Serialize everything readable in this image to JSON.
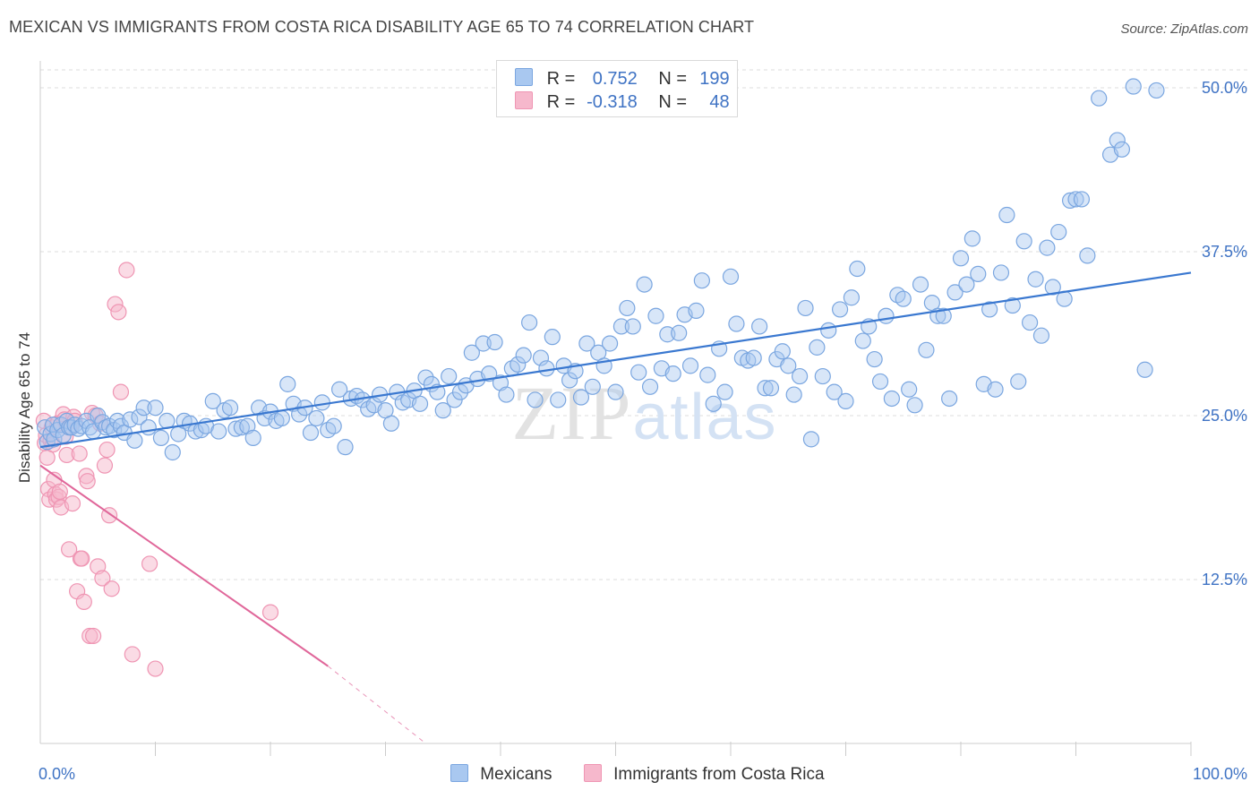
{
  "title": "MEXICAN VS IMMIGRANTS FROM COSTA RICA DISABILITY AGE 65 TO 74 CORRELATION CHART",
  "source": "Source: ZipAtlas.com",
  "watermark": "ZIPatlas",
  "legend": {
    "rows": [
      {
        "r_label": "R =",
        "r_value": "0.752",
        "n_label": "N =",
        "n_value": "199"
      },
      {
        "r_label": "R =",
        "r_value": "-0.318",
        "n_label": "N =",
        "n_value": "48"
      }
    ],
    "bottom": [
      "Mexicans",
      "Immigrants from Costa Rica"
    ]
  },
  "colors": {
    "blue_fill": "#a9c8f0",
    "blue_stroke": "#7aa6e0",
    "blue_line": "#3a78d0",
    "pink_fill": "#f6b8cc",
    "pink_stroke": "#ef95b3",
    "pink_line": "#e0679a",
    "axis_label": "#3f73c4",
    "grid": "#dddddd"
  },
  "chart_data": {
    "type": "scatter",
    "title": "MEXICAN VS IMMIGRANTS FROM COSTA RICA DISABILITY AGE 65 TO 74 CORRELATION CHART",
    "xlabel": "",
    "ylabel": "Disability Age 65 to 74",
    "xlim": [
      0,
      100
    ],
    "ylim": [
      0,
      50
    ],
    "x_tick_labels": [
      "0.0%",
      "100.0%"
    ],
    "y_ticks": [
      12.5,
      25.0,
      37.5,
      50.0
    ],
    "y_tick_labels": [
      "12.5%",
      "25.0%",
      "37.5%",
      "50.0%"
    ],
    "grid": true,
    "legend_position": "top-center",
    "series": [
      {
        "name": "Mexicans",
        "r": 0.752,
        "n": 199,
        "trend": {
          "x": [
            0,
            100
          ],
          "y": [
            22.6,
            35.9
          ]
        },
        "points": [
          [
            0.4,
            24.1
          ],
          [
            0.6,
            23.0
          ],
          [
            0.9,
            23.6
          ],
          [
            1.1,
            24.3
          ],
          [
            1.2,
            23.2
          ],
          [
            1.5,
            23.9
          ],
          [
            1.8,
            24.3
          ],
          [
            2.0,
            23.5
          ],
          [
            2.3,
            24.6
          ],
          [
            2.5,
            24.1
          ],
          [
            2.7,
            24.1
          ],
          [
            3.0,
            24.3
          ],
          [
            3.3,
            24.0
          ],
          [
            3.6,
            24.2
          ],
          [
            4.0,
            24.6
          ],
          [
            4.3,
            24.1
          ],
          [
            4.6,
            23.8
          ],
          [
            5.0,
            25.0
          ],
          [
            5.4,
            24.5
          ],
          [
            5.7,
            24.1
          ],
          [
            6.0,
            24.2
          ],
          [
            6.4,
            23.9
          ],
          [
            6.7,
            24.6
          ],
          [
            7.0,
            24.2
          ],
          [
            7.3,
            23.7
          ],
          [
            7.8,
            24.7
          ],
          [
            8.2,
            23.1
          ],
          [
            8.6,
            24.9
          ],
          [
            9.0,
            25.6
          ],
          [
            9.4,
            24.1
          ],
          [
            10.0,
            25.6
          ],
          [
            10.5,
            23.3
          ],
          [
            11.0,
            24.6
          ],
          [
            11.5,
            22.2
          ],
          [
            12.0,
            23.6
          ],
          [
            12.5,
            24.6
          ],
          [
            13.0,
            24.4
          ],
          [
            13.5,
            23.8
          ],
          [
            14.0,
            23.9
          ],
          [
            14.4,
            24.2
          ],
          [
            15.0,
            26.1
          ],
          [
            15.5,
            23.8
          ],
          [
            16.0,
            25.4
          ],
          [
            16.5,
            25.6
          ],
          [
            17.0,
            24.0
          ],
          [
            17.5,
            24.1
          ],
          [
            18.0,
            24.2
          ],
          [
            18.5,
            23.3
          ],
          [
            19.0,
            25.6
          ],
          [
            19.5,
            24.8
          ],
          [
            20.0,
            25.3
          ],
          [
            20.5,
            24.6
          ],
          [
            21.0,
            24.8
          ],
          [
            21.5,
            27.4
          ],
          [
            22.0,
            25.9
          ],
          [
            22.5,
            25.1
          ],
          [
            23.0,
            25.6
          ],
          [
            23.5,
            23.7
          ],
          [
            24.0,
            24.8
          ],
          [
            24.5,
            26.0
          ],
          [
            25.0,
            23.9
          ],
          [
            25.5,
            24.2
          ],
          [
            26.0,
            27.0
          ],
          [
            26.5,
            22.6
          ],
          [
            27.0,
            26.3
          ],
          [
            27.5,
            26.5
          ],
          [
            28.0,
            26.2
          ],
          [
            28.5,
            25.5
          ],
          [
            29.0,
            25.8
          ],
          [
            29.5,
            26.6
          ],
          [
            30.0,
            25.4
          ],
          [
            30.5,
            24.4
          ],
          [
            31.0,
            26.8
          ],
          [
            31.5,
            26.0
          ],
          [
            32.0,
            26.2
          ],
          [
            32.5,
            26.9
          ],
          [
            33.0,
            25.9
          ],
          [
            33.5,
            27.9
          ],
          [
            34.0,
            27.4
          ],
          [
            34.5,
            26.8
          ],
          [
            35.0,
            25.4
          ],
          [
            35.5,
            28.0
          ],
          [
            36.0,
            26.2
          ],
          [
            36.5,
            26.8
          ],
          [
            37.0,
            27.3
          ],
          [
            37.5,
            29.8
          ],
          [
            38.0,
            27.8
          ],
          [
            38.5,
            30.5
          ],
          [
            39.0,
            28.2
          ],
          [
            39.5,
            30.6
          ],
          [
            40.0,
            27.5
          ],
          [
            40.5,
            26.6
          ],
          [
            41.0,
            28.6
          ],
          [
            41.5,
            28.9
          ],
          [
            42.0,
            29.6
          ],
          [
            42.5,
            32.1
          ],
          [
            43.0,
            26.2
          ],
          [
            43.5,
            29.4
          ],
          [
            44.0,
            28.6
          ],
          [
            44.5,
            31.0
          ],
          [
            45.0,
            26.2
          ],
          [
            45.5,
            28.8
          ],
          [
            46.0,
            27.7
          ],
          [
            46.5,
            28.4
          ],
          [
            47.0,
            26.4
          ],
          [
            47.5,
            30.5
          ],
          [
            48.0,
            27.2
          ],
          [
            48.5,
            29.8
          ],
          [
            49.0,
            28.8
          ],
          [
            49.5,
            30.5
          ],
          [
            50.0,
            26.8
          ],
          [
            50.5,
            31.8
          ],
          [
            51.0,
            33.2
          ],
          [
            51.5,
            31.8
          ],
          [
            52.0,
            28.3
          ],
          [
            52.5,
            35.0
          ],
          [
            53.0,
            27.2
          ],
          [
            53.5,
            32.6
          ],
          [
            54.0,
            28.6
          ],
          [
            54.5,
            31.2
          ],
          [
            55.0,
            28.2
          ],
          [
            55.5,
            31.3
          ],
          [
            56.0,
            32.7
          ],
          [
            56.5,
            28.8
          ],
          [
            57.0,
            33.0
          ],
          [
            57.5,
            35.3
          ],
          [
            58.0,
            28.1
          ],
          [
            58.5,
            25.9
          ],
          [
            59.0,
            30.1
          ],
          [
            59.5,
            26.8
          ],
          [
            60.0,
            35.6
          ],
          [
            60.5,
            32.0
          ],
          [
            61.0,
            29.4
          ],
          [
            61.5,
            29.2
          ],
          [
            62.0,
            29.4
          ],
          [
            62.5,
            31.8
          ],
          [
            63.0,
            27.1
          ],
          [
            63.5,
            27.1
          ],
          [
            64.0,
            29.3
          ],
          [
            64.5,
            29.9
          ],
          [
            65.0,
            28.8
          ],
          [
            65.5,
            26.6
          ],
          [
            66.0,
            28.0
          ],
          [
            66.5,
            33.2
          ],
          [
            67.0,
            23.2
          ],
          [
            67.5,
            30.2
          ],
          [
            68.0,
            28.0
          ],
          [
            68.5,
            31.5
          ],
          [
            69.0,
            26.8
          ],
          [
            69.5,
            33.1
          ],
          [
            70.0,
            26.1
          ],
          [
            70.5,
            34.0
          ],
          [
            71.0,
            36.2
          ],
          [
            71.5,
            30.7
          ],
          [
            72.0,
            31.8
          ],
          [
            72.5,
            29.3
          ],
          [
            73.0,
            27.6
          ],
          [
            73.5,
            32.6
          ],
          [
            74.0,
            26.3
          ],
          [
            74.5,
            34.2
          ],
          [
            75.0,
            33.9
          ],
          [
            75.5,
            27.0
          ],
          [
            76.0,
            25.8
          ],
          [
            76.5,
            35.0
          ],
          [
            77.0,
            30.0
          ],
          [
            77.5,
            33.6
          ],
          [
            78.0,
            32.6
          ],
          [
            78.5,
            32.6
          ],
          [
            79.0,
            26.3
          ],
          [
            79.5,
            34.4
          ],
          [
            80.0,
            37.0
          ],
          [
            80.5,
            35.0
          ],
          [
            81.0,
            38.5
          ],
          [
            81.5,
            35.8
          ],
          [
            82.0,
            27.4
          ],
          [
            82.5,
            33.1
          ],
          [
            83.0,
            27.0
          ],
          [
            83.5,
            35.9
          ],
          [
            84.0,
            40.3
          ],
          [
            84.5,
            33.4
          ],
          [
            85.0,
            27.6
          ],
          [
            85.5,
            38.3
          ],
          [
            86.0,
            32.1
          ],
          [
            86.5,
            35.4
          ],
          [
            87.0,
            31.1
          ],
          [
            87.5,
            37.8
          ],
          [
            88.0,
            34.8
          ],
          [
            88.5,
            39.0
          ],
          [
            89.0,
            33.9
          ],
          [
            89.5,
            41.4
          ],
          [
            90.0,
            41.5
          ],
          [
            90.5,
            41.5
          ],
          [
            91.0,
            37.2
          ],
          [
            92.0,
            49.2
          ],
          [
            93.0,
            44.9
          ],
          [
            93.6,
            46.0
          ],
          [
            94.0,
            45.3
          ],
          [
            95.0,
            50.1
          ],
          [
            96.0,
            28.5
          ],
          [
            97.0,
            49.8
          ]
        ]
      },
      {
        "name": "Immigrants from Costa Rica",
        "r": -0.318,
        "n": 48,
        "trend": {
          "x": [
            0,
            25
          ],
          "y": [
            21.2,
            5.9
          ]
        },
        "trend_dashed": {
          "x": [
            25,
            33.5
          ],
          "y": [
            5.9,
            0.0
          ]
        },
        "points": [
          [
            0.3,
            24.6
          ],
          [
            0.4,
            22.9
          ],
          [
            0.5,
            23.5
          ],
          [
            0.6,
            21.8
          ],
          [
            0.7,
            19.4
          ],
          [
            0.8,
            18.6
          ],
          [
            0.9,
            23.1
          ],
          [
            1.0,
            24.1
          ],
          [
            1.1,
            22.8
          ],
          [
            1.2,
            20.1
          ],
          [
            1.3,
            19.0
          ],
          [
            1.4,
            18.6
          ],
          [
            1.5,
            24.4
          ],
          [
            1.6,
            18.8
          ],
          [
            1.7,
            19.2
          ],
          [
            1.8,
            18.0
          ],
          [
            2.0,
            25.1
          ],
          [
            2.1,
            24.7
          ],
          [
            2.2,
            23.4
          ],
          [
            2.3,
            22.0
          ],
          [
            2.5,
            14.8
          ],
          [
            2.6,
            24.1
          ],
          [
            2.8,
            18.3
          ],
          [
            2.9,
            24.9
          ],
          [
            3.0,
            24.6
          ],
          [
            3.2,
            11.6
          ],
          [
            3.4,
            22.1
          ],
          [
            3.5,
            14.1
          ],
          [
            3.6,
            14.1
          ],
          [
            3.8,
            10.8
          ],
          [
            4.0,
            20.4
          ],
          [
            4.1,
            20.0
          ],
          [
            4.3,
            8.2
          ],
          [
            4.5,
            25.2
          ],
          [
            4.6,
            8.2
          ],
          [
            4.8,
            25.0
          ],
          [
            5.0,
            13.5
          ],
          [
            5.2,
            24.4
          ],
          [
            5.4,
            12.6
          ],
          [
            5.6,
            21.2
          ],
          [
            5.8,
            22.4
          ],
          [
            6.0,
            17.4
          ],
          [
            6.2,
            11.8
          ],
          [
            6.5,
            33.5
          ],
          [
            6.8,
            32.9
          ],
          [
            7.0,
            26.8
          ],
          [
            7.5,
            36.1
          ],
          [
            8.0,
            6.8
          ],
          [
            9.5,
            13.7
          ],
          [
            10.0,
            5.7
          ],
          [
            20.0,
            10.0
          ]
        ]
      }
    ]
  }
}
